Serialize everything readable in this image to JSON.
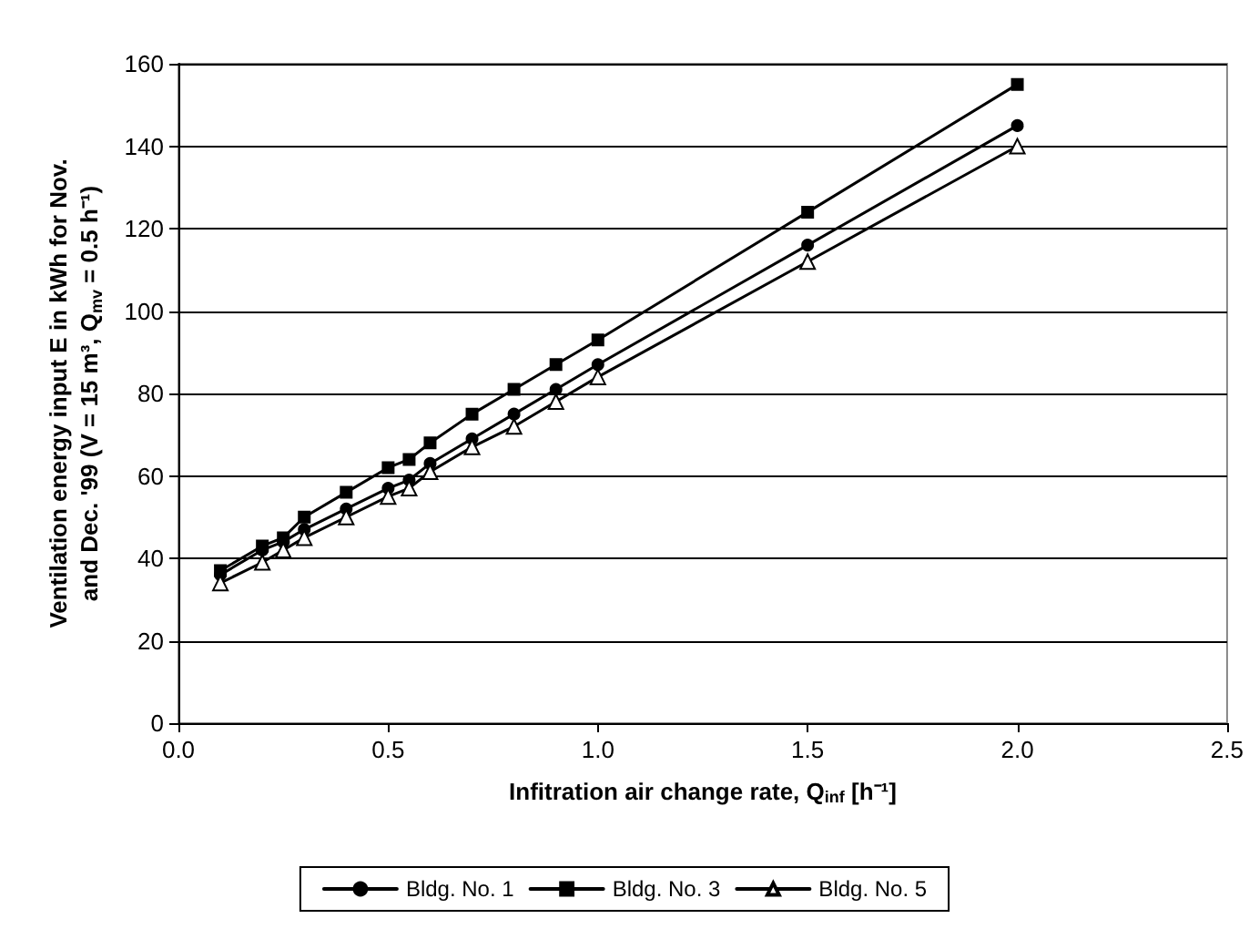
{
  "chart_data": {
    "type": "line",
    "xlabel": "Infitration air change rate, Q$_{inf}$ [h⁻¹]",
    "ylabel": "Ventilation energy input E in kWh for Nov. and Dec. '99 (V = 15 m³, Q$_{mv}$ = 0.5 h⁻¹)",
    "x": [
      0.1,
      0.2,
      0.25,
      0.3,
      0.4,
      0.5,
      0.55,
      0.6,
      0.7,
      0.8,
      0.9,
      1.0,
      1.5,
      2.0
    ],
    "series": [
      {
        "name": "Bldg. No. 1",
        "color": "#000000",
        "marker": "circle",
        "values": [
          36,
          42,
          44,
          47,
          52,
          57,
          59,
          63,
          69,
          75,
          81,
          87,
          116,
          145
        ]
      },
      {
        "name": "Bldg. No. 3",
        "color": "#000000",
        "marker": "square",
        "values": [
          37,
          43,
          45,
          50,
          56,
          62,
          64,
          68,
          75,
          81,
          87,
          93,
          124,
          155
        ]
      },
      {
        "name": "Bldg. No. 5",
        "color": "#000000",
        "marker": "triangle",
        "values": [
          34,
          39,
          42,
          45,
          50,
          55,
          57,
          61,
          67,
          72,
          78,
          84,
          112,
          140
        ]
      }
    ],
    "xlim": [
      0,
      2.5
    ],
    "xticks": [
      {
        "value": 0,
        "label": "0.0"
      },
      0.5,
      {
        "value": 1,
        "label": "1.0"
      },
      1.5,
      {
        "value": 2,
        "label": "2.0"
      },
      2.5
    ],
    "ylim": [
      0,
      160
    ],
    "yticks": [
      0,
      20,
      40,
      60,
      80,
      100,
      120,
      140,
      160
    ],
    "grid": "y",
    "legend": "bottom",
    "line_style": "solid"
  }
}
